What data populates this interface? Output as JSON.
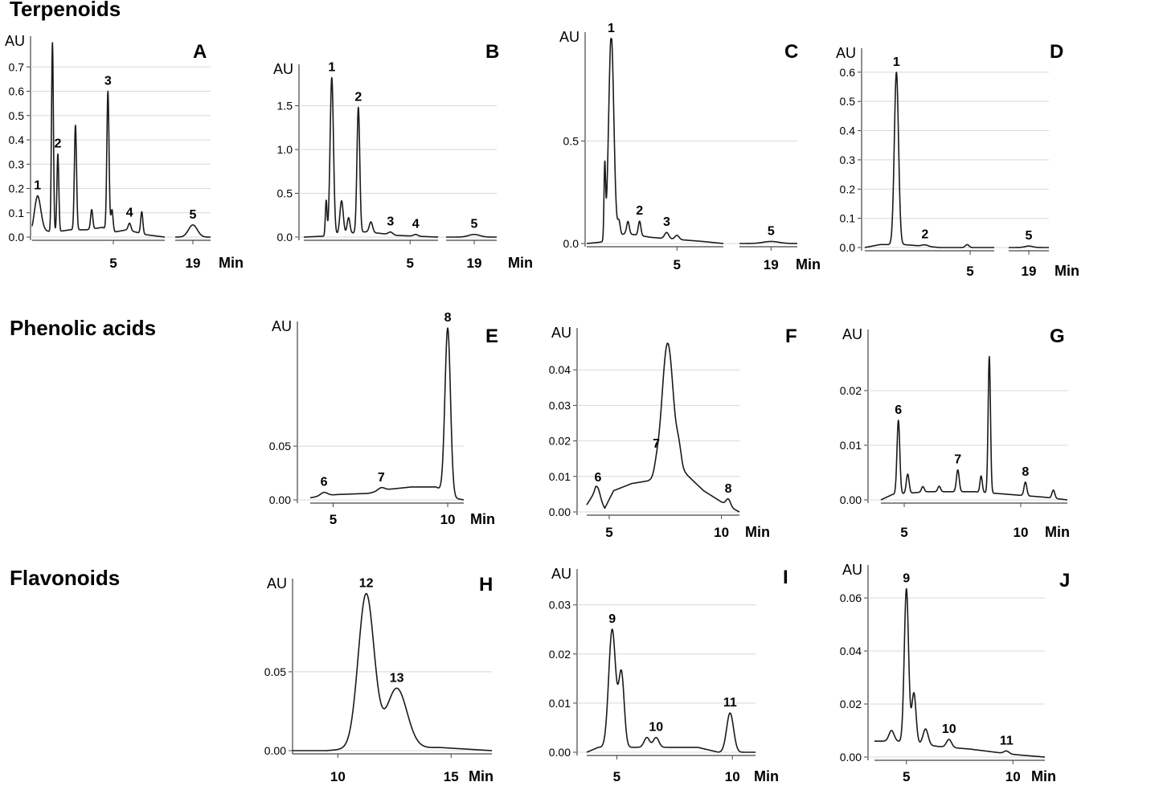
{
  "sections": [
    {
      "key": "terpenoids",
      "title": "Terpenoids"
    },
    {
      "key": "phenolic",
      "title": "Phenolic acids"
    },
    {
      "key": "flavonoids",
      "title": "Flavonoids"
    }
  ],
  "chart_data": [
    {
      "type": "line",
      "panel": "A",
      "section": "terpenoids",
      "ylabel": "AU",
      "xunit": "Min",
      "yticks": [
        "0.0",
        "0.1",
        "0.2",
        "0.3",
        "0.4",
        "0.5",
        "0.6",
        "0.7"
      ],
      "ylim": [
        0,
        0.8
      ],
      "xticks": [
        {
          "label": "5",
          "value": 5
        },
        {
          "label": "19",
          "value": 19
        }
      ],
      "xsegments": [
        [
          2,
          6.9
        ],
        [
          18.2,
          19.8
        ]
      ],
      "baseline": [
        [
          2,
          0.01
        ],
        [
          2.2,
          0.03
        ],
        [
          2.8,
          0.02
        ],
        [
          3.4,
          0.03
        ],
        [
          4.0,
          0.03
        ],
        [
          4.6,
          0.04
        ],
        [
          5.0,
          0.02
        ],
        [
          5.5,
          0.03
        ],
        [
          6.2,
          0.01
        ],
        [
          6.9,
          0.0
        ],
        [
          18.2,
          0.0
        ],
        [
          19.8,
          0.0
        ]
      ],
      "peaks": [
        {
          "label": "1",
          "rt": 2.2,
          "height": 0.14,
          "width": 0.12
        },
        {
          "label": "",
          "rt": 2.75,
          "height": 0.78,
          "width": 0.035
        },
        {
          "label": "2",
          "rt": 2.95,
          "height": 0.32,
          "width": 0.035
        },
        {
          "label": "",
          "rt": 3.6,
          "height": 0.43,
          "width": 0.04
        },
        {
          "label": "",
          "rt": 4.2,
          "height": 0.08,
          "width": 0.04
        },
        {
          "label": "3",
          "rt": 4.8,
          "height": 0.57,
          "width": 0.04
        },
        {
          "label": "",
          "rt": 4.95,
          "height": 0.09,
          "width": 0.04
        },
        {
          "label": "4",
          "rt": 5.6,
          "height": 0.03,
          "width": 0.05
        },
        {
          "label": "",
          "rt": 6.05,
          "height": 0.09,
          "width": 0.04
        },
        {
          "label": "5",
          "rt": 19.0,
          "height": 0.05,
          "width": 0.2
        }
      ]
    },
    {
      "type": "line",
      "panel": "B",
      "section": "terpenoids",
      "ylabel": "AU",
      "xunit": "Min",
      "yticks": [
        "0.0",
        "0.5",
        "1.0",
        "1.5"
      ],
      "ylim": [
        0,
        1.9
      ],
      "xticks": [
        {
          "label": "5",
          "value": 5
        },
        {
          "label": "19",
          "value": 19
        }
      ],
      "xsegments": [
        [
          1.2,
          6.0
        ],
        [
          18.0,
          19.8
        ]
      ],
      "baseline": [
        [
          1.2,
          0.0
        ],
        [
          1.9,
          0.01
        ],
        [
          2.4,
          0.03
        ],
        [
          3.4,
          0.06
        ],
        [
          4.0,
          0.04
        ],
        [
          4.5,
          0.02
        ],
        [
          5.2,
          0.01
        ],
        [
          6.0,
          0.0
        ],
        [
          18.0,
          0.0
        ],
        [
          19.8,
          0.0
        ]
      ],
      "peaks": [
        {
          "label": "",
          "rt": 2.0,
          "height": 0.4,
          "width": 0.03
        },
        {
          "label": "1",
          "rt": 2.2,
          "height": 1.8,
          "width": 0.06
        },
        {
          "label": "",
          "rt": 2.55,
          "height": 0.38,
          "width": 0.06
        },
        {
          "label": "",
          "rt": 2.8,
          "height": 0.18,
          "width": 0.05
        },
        {
          "label": "2",
          "rt": 3.15,
          "height": 1.43,
          "width": 0.05
        },
        {
          "label": "",
          "rt": 3.6,
          "height": 0.12,
          "width": 0.06
        },
        {
          "label": "3",
          "rt": 4.3,
          "height": 0.03,
          "width": 0.08
        },
        {
          "label": "4",
          "rt": 5.2,
          "height": 0.02,
          "width": 0.08
        },
        {
          "label": "5",
          "rt": 19.0,
          "height": 0.03,
          "width": 0.2
        }
      ]
    },
    {
      "type": "line",
      "panel": "C",
      "section": "terpenoids",
      "ylabel": "AU",
      "xunit": "Min",
      "yticks": [
        "0.0",
        "0.5"
      ],
      "ylim": [
        0,
        1.0
      ],
      "xticks": [
        {
          "label": "5",
          "value": 5
        },
        {
          "label": "19",
          "value": 19
        }
      ],
      "xsegments": [
        [
          1.5,
          6.8
        ],
        [
          17.8,
          20.0
        ]
      ],
      "baseline": [
        [
          1.5,
          0.0
        ],
        [
          2.3,
          0.01
        ],
        [
          3.0,
          0.05
        ],
        [
          4.0,
          0.03
        ],
        [
          5.0,
          0.02
        ],
        [
          6.0,
          0.01
        ],
        [
          6.8,
          0.0
        ],
        [
          17.8,
          0.0
        ],
        [
          20.0,
          0.0
        ]
      ],
      "peaks": [
        {
          "label": "",
          "rt": 2.2,
          "height": 0.35,
          "width": 0.03
        },
        {
          "label": "1",
          "rt": 2.45,
          "height": 1.0,
          "width": 0.1
        },
        {
          "label": "",
          "rt": 2.75,
          "height": 0.07,
          "width": 0.05
        },
        {
          "label": "",
          "rt": 3.1,
          "height": 0.06,
          "width": 0.05
        },
        {
          "label": "2",
          "rt": 3.55,
          "height": 0.07,
          "width": 0.05
        },
        {
          "label": "3",
          "rt": 4.6,
          "height": 0.03,
          "width": 0.08
        },
        {
          "label": "",
          "rt": 5.0,
          "height": 0.02,
          "width": 0.08
        },
        {
          "label": "5",
          "rt": 19.0,
          "height": 0.01,
          "width": 0.3
        }
      ]
    },
    {
      "type": "line",
      "panel": "D",
      "section": "terpenoids",
      "ylabel": "AU",
      "xunit": "Min",
      "yticks": [
        "0.0",
        "0.1",
        "0.2",
        "0.3",
        "0.4",
        "0.5",
        "0.6"
      ],
      "ylim": [
        0,
        0.66
      ],
      "xticks": [
        {
          "label": "5",
          "value": 5
        },
        {
          "label": "19",
          "value": 19
        }
      ],
      "xsegments": [
        [
          1.5,
          5.8
        ],
        [
          18.0,
          20.0
        ]
      ],
      "baseline": [
        [
          1.5,
          0.0
        ],
        [
          2.0,
          0.01
        ],
        [
          2.8,
          0.01
        ],
        [
          4.0,
          0.0
        ],
        [
          5.8,
          0.0
        ],
        [
          18.0,
          0.0
        ],
        [
          20.0,
          0.0
        ]
      ],
      "peaks": [
        {
          "label": "1",
          "rt": 2.55,
          "height": 0.59,
          "width": 0.07
        },
        {
          "label": "2",
          "rt": 3.5,
          "height": 0.005,
          "width": 0.1
        },
        {
          "label": "",
          "rt": 4.9,
          "height": 0.01,
          "width": 0.06
        },
        {
          "label": "5",
          "rt": 19.0,
          "height": 0.005,
          "width": 0.2
        }
      ]
    },
    {
      "type": "line",
      "panel": "E",
      "section": "phenolic",
      "ylabel": "AU",
      "xunit": "Min",
      "yticks": [
        "0.00",
        "0.05"
      ],
      "ylim": [
        0,
        0.16
      ],
      "xticks": [
        {
          "label": "5",
          "value": 5
        },
        {
          "label": "10",
          "value": 10
        }
      ],
      "xsegments": [
        [
          4.0,
          10.7
        ]
      ],
      "baseline": [
        [
          4.0,
          0.002
        ],
        [
          4.6,
          0.004
        ],
        [
          5.2,
          0.005
        ],
        [
          6.5,
          0.006
        ],
        [
          7.5,
          0.01
        ],
        [
          8.4,
          0.012
        ],
        [
          9.5,
          0.012
        ],
        [
          10.2,
          0.002
        ],
        [
          10.7,
          0.0
        ]
      ],
      "peaks": [
        {
          "label": "6",
          "rt": 4.6,
          "height": 0.003,
          "width": 0.15
        },
        {
          "label": "7",
          "rt": 7.1,
          "height": 0.003,
          "width": 0.15
        },
        {
          "label": "8",
          "rt": 10.0,
          "height": 0.155,
          "width": 0.12
        }
      ]
    },
    {
      "type": "line",
      "panel": "F",
      "section": "phenolic",
      "ylabel": "AU",
      "xunit": "Min",
      "yticks": [
        "0.00",
        "0.01",
        "0.02",
        "0.03",
        "0.04"
      ],
      "ylim": [
        0,
        0.05
      ],
      "xticks": [
        {
          "label": "5",
          "value": 5
        },
        {
          "label": "10",
          "value": 10
        }
      ],
      "xsegments": [
        [
          4.0,
          10.8
        ]
      ],
      "baseline": [
        [
          4.0,
          0.002
        ],
        [
          4.4,
          0.006
        ],
        [
          4.8,
          0.001
        ],
        [
          5.2,
          0.006
        ],
        [
          6.0,
          0.008
        ],
        [
          7.0,
          0.009
        ],
        [
          8.2,
          0.012
        ],
        [
          9.2,
          0.006
        ],
        [
          10.2,
          0.002
        ],
        [
          10.8,
          0.0
        ]
      ],
      "peaks": [
        {
          "label": "6",
          "rt": 4.5,
          "height": 0.002,
          "width": 0.1
        },
        {
          "label": "7",
          "rt": 7.1,
          "height": 0.002,
          "width": 0.1
        },
        {
          "label": "",
          "rt": 7.6,
          "height": 0.037,
          "width": 0.25
        },
        {
          "label": "",
          "rt": 8.1,
          "height": 0.004,
          "width": 0.1
        },
        {
          "label": "8",
          "rt": 10.3,
          "height": 0.002,
          "width": 0.1
        }
      ]
    },
    {
      "type": "line",
      "panel": "G",
      "section": "phenolic",
      "ylabel": "AU",
      "xunit": "Min",
      "yticks": [
        "0.00",
        "0.01",
        "0.02"
      ],
      "ylim": [
        0,
        0.03
      ],
      "xticks": [
        {
          "label": "5",
          "value": 5
        },
        {
          "label": "10",
          "value": 10
        }
      ],
      "xsegments": [
        [
          4.0,
          12.0
        ]
      ],
      "baseline": [
        [
          4.0,
          0.0
        ],
        [
          4.5,
          0.001
        ],
        [
          6.0,
          0.0015
        ],
        [
          8.0,
          0.0015
        ],
        [
          9.5,
          0.001
        ],
        [
          11.0,
          0.0005
        ],
        [
          12.0,
          0.0
        ]
      ],
      "peaks": [
        {
          "label": "6",
          "rt": 4.75,
          "height": 0.0135,
          "width": 0.06
        },
        {
          "label": "",
          "rt": 5.15,
          "height": 0.0035,
          "width": 0.06
        },
        {
          "label": "",
          "rt": 5.8,
          "height": 0.001,
          "width": 0.06
        },
        {
          "label": "",
          "rt": 6.5,
          "height": 0.001,
          "width": 0.06
        },
        {
          "label": "7",
          "rt": 7.3,
          "height": 0.004,
          "width": 0.06
        },
        {
          "label": "",
          "rt": 8.3,
          "height": 0.003,
          "width": 0.05
        },
        {
          "label": "",
          "rt": 8.65,
          "height": 0.025,
          "width": 0.05
        },
        {
          "label": "8",
          "rt": 10.2,
          "height": 0.0025,
          "width": 0.06
        },
        {
          "label": "",
          "rt": 11.4,
          "height": 0.0015,
          "width": 0.06
        }
      ]
    },
    {
      "type": "line",
      "panel": "H",
      "section": "flavonoids",
      "ylabel": "AU",
      "xunit": "Min",
      "yticks": [
        "0.00",
        "0.05"
      ],
      "ylim": [
        0,
        0.105
      ],
      "xticks": [
        {
          "label": "10",
          "value": 10
        },
        {
          "label": "15",
          "value": 15
        }
      ],
      "xsegments": [
        [
          8.0,
          16.8
        ]
      ],
      "baseline": [
        [
          8.0,
          0.0
        ],
        [
          9.5,
          0.0
        ],
        [
          10.3,
          0.001
        ],
        [
          14.5,
          0.002
        ],
        [
          16.8,
          0.0
        ]
      ],
      "peaks": [
        {
          "label": "12",
          "rt": 11.25,
          "height": 0.098,
          "width": 0.35
        },
        {
          "label": "13",
          "rt": 12.6,
          "height": 0.038,
          "width": 0.45
        }
      ]
    },
    {
      "type": "line",
      "panel": "I",
      "section": "flavonoids",
      "ylabel": "AU",
      "xunit": "Min",
      "yticks": [
        "0.00",
        "0.01",
        "0.02",
        "0.03"
      ],
      "ylim": [
        0,
        0.036
      ],
      "xticks": [
        {
          "label": "5",
          "value": 5
        },
        {
          "label": "10",
          "value": 10
        }
      ],
      "xsegments": [
        [
          3.7,
          11.0
        ]
      ],
      "baseline": [
        [
          3.7,
          0.0
        ],
        [
          4.2,
          0.001
        ],
        [
          5.8,
          0.001
        ],
        [
          8.5,
          0.001
        ],
        [
          9.4,
          0.0
        ],
        [
          11.0,
          0.0
        ]
      ],
      "peaks": [
        {
          "label": "9",
          "rt": 4.8,
          "height": 0.024,
          "width": 0.15
        },
        {
          "label": "",
          "rt": 5.2,
          "height": 0.015,
          "width": 0.12
        },
        {
          "label": "",
          "rt": 6.3,
          "height": 0.002,
          "width": 0.12
        },
        {
          "label": "10",
          "rt": 6.7,
          "height": 0.002,
          "width": 0.12
        },
        {
          "label": "11",
          "rt": 9.9,
          "height": 0.008,
          "width": 0.15
        }
      ]
    },
    {
      "type": "line",
      "panel": "J",
      "section": "flavonoids",
      "ylabel": "AU",
      "xunit": "Min",
      "yticks": [
        "0.00",
        "0.02",
        "0.04",
        "0.06"
      ],
      "ylim": [
        0,
        0.07
      ],
      "xticks": [
        {
          "label": "5",
          "value": 5
        },
        {
          "label": "10",
          "value": 10
        }
      ],
      "xsegments": [
        [
          3.5,
          11.5
        ]
      ],
      "baseline": [
        [
          3.5,
          0.006
        ],
        [
          4.5,
          0.006
        ],
        [
          6.5,
          0.004
        ],
        [
          8.0,
          0.003
        ],
        [
          10.0,
          0.001
        ],
        [
          11.5,
          0.0
        ]
      ],
      "peaks": [
        {
          "label": "",
          "rt": 4.3,
          "height": 0.004,
          "width": 0.12
        },
        {
          "label": "9",
          "rt": 5.0,
          "height": 0.058,
          "width": 0.1
        },
        {
          "label": "",
          "rt": 5.35,
          "height": 0.019,
          "width": 0.1
        },
        {
          "label": "",
          "rt": 5.9,
          "height": 0.006,
          "width": 0.12
        },
        {
          "label": "10",
          "rt": 7.0,
          "height": 0.003,
          "width": 0.12
        },
        {
          "label": "11",
          "rt": 9.7,
          "height": 0.001,
          "width": 0.12
        }
      ]
    }
  ]
}
